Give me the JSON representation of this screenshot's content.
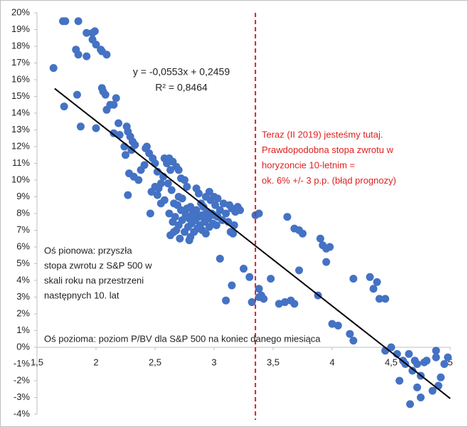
{
  "chart_data": {
    "type": "scatter",
    "equation": [
      "y = -0,0553x + 0,2459",
      "R² = 0,8464"
    ],
    "annotation_right": [
      "Teraz (II 2019) jesteśmy tutaj.",
      "Prawdopodobna stopa zwrotu w",
      "horyzoncie 10-letnim =",
      "ok. 6% +/- 3 p.p. (błąd prognozy)"
    ],
    "annotation_left": [
      "Oś pionowa: przyszła",
      "stopa zwrotu z S&P 500 w",
      "skali roku na przestrzeni",
      "następnych 10. lat"
    ],
    "x_axis_note": "Oś pozioma: poziom P/BV dla S&P 500 na koniec danego miesiąca",
    "x": [
      1.64,
      1.72,
      1.74,
      1.85,
      1.92,
      1.83,
      1.85,
      1.92,
      1.97,
      1.99,
      1.97,
      2.0,
      2.04,
      2.05,
      2.09,
      1.73,
      1.84,
      1.87,
      2.0,
      2.05,
      2.06,
      2.08,
      2.09,
      2.12,
      2.15,
      2.17,
      2.15,
      2.19,
      2.26,
      2.27,
      2.29,
      2.31,
      2.33,
      2.25,
      2.3,
      2.24,
      2.28,
      2.27,
      2.32,
      2.36,
      2.38,
      2.41,
      2.42,
      2.43,
      2.45,
      2.48,
      2.5,
      2.52,
      2.47,
      2.5,
      2.52,
      2.55,
      2.57,
      2.58,
      2.6,
      2.62,
      2.63,
      2.65,
      2.68,
      2.7,
      2.72,
      2.61,
      2.64,
      2.66,
      2.7,
      2.75,
      2.58,
      2.55,
      2.53,
      2.46,
      2.2,
      2.62,
      2.65,
      2.67,
      2.68,
      2.7,
      2.72,
      2.73,
      2.75,
      2.76,
      2.77,
      2.78,
      2.79,
      2.8,
      2.8,
      2.81,
      2.82,
      2.83,
      2.84,
      2.85,
      2.86,
      2.87,
      2.88,
      2.89,
      2.9,
      2.9,
      2.91,
      2.92,
      2.93,
      2.94,
      2.95,
      2.96,
      2.97,
      2.98,
      2.99,
      3.0,
      3.01,
      3.02,
      3.03,
      3.05,
      3.07,
      3.1,
      3.12,
      3.15,
      3.18,
      3.2,
      2.63,
      2.66,
      2.71,
      2.79,
      2.87,
      2.93,
      2.96,
      3.0,
      3.03,
      3.08,
      3.13,
      3.17,
      3.14,
      2.85,
      2.77,
      2.73,
      2.69,
      3.22,
      3.16,
      3.05,
      3.1,
      3.15,
      3.25,
      3.3,
      3.32,
      3.35,
      3.38,
      3.38,
      3.4,
      3.42,
      3.38,
      3.48,
      3.55,
      3.6,
      3.65,
      3.68,
      3.62,
      3.68,
      3.72,
      3.75,
      3.72,
      3.9,
      3.92,
      3.95,
      3.98,
      3.95,
      3.88,
      4.0,
      4.05,
      4.15,
      4.18,
      4.18,
      4.32,
      4.38,
      4.35,
      4.4,
      4.45,
      4.45,
      4.5,
      4.55,
      4.6,
      4.62,
      4.65,
      4.68,
      4.7,
      4.72,
      4.75,
      4.78,
      4.8,
      4.85,
      4.88,
      4.88,
      4.9,
      4.92,
      4.95,
      4.98,
      4.72,
      4.75,
      4.66,
      4.57
    ],
    "series": [
      {
        "color": "#4472c4",
        "values": [
          16.7,
          19.5,
          19.5,
          19.5,
          18.8,
          17.8,
          17.5,
          17.4,
          18.8,
          18.9,
          18.4,
          18.1,
          17.8,
          17.7,
          17.5,
          14.4,
          15.1,
          13.2,
          13.1,
          15.5,
          15.3,
          15.1,
          14.2,
          14.5,
          14.5,
          14.9,
          12.8,
          13.4,
          13.2,
          12.9,
          12.6,
          12.3,
          12.1,
          11.5,
          11.8,
          12.0,
          10.4,
          9.1,
          10.2,
          10.0,
          10.6,
          10.9,
          11.9,
          12.0,
          11.6,
          11.3,
          11.0,
          10.5,
          9.3,
          9.6,
          9.1,
          9.8,
          10.2,
          11.3,
          11.0,
          11.3,
          10.6,
          11.1,
          10.8,
          10.6,
          10.1,
          9.8,
          9.4,
          8.6,
          9.0,
          10.0,
          8.8,
          8.6,
          9.5,
          8.0,
          12.7,
          8.0,
          7.5,
          7.8,
          7.0,
          7.3,
          8.2,
          7.6,
          6.9,
          7.9,
          8.3,
          7.2,
          7.7,
          6.6,
          8.4,
          7.4,
          8.0,
          6.9,
          7.6,
          8.2,
          7.1,
          7.8,
          7.3,
          8.6,
          7.0,
          7.9,
          8.4,
          7.5,
          6.8,
          8.1,
          7.7,
          7.2,
          8.8,
          8.0,
          7.4,
          7.9,
          8.5,
          7.3,
          7.8,
          8.2,
          7.6,
          8.0,
          7.5,
          8.3,
          8.1,
          8.4,
          6.7,
          6.9,
          6.5,
          6.4,
          9.2,
          9.0,
          9.3,
          9.0,
          8.9,
          8.6,
          8.5,
          7.3,
          6.9,
          9.5,
          9.6,
          8.9,
          8.5,
          8.2,
          6.8,
          5.3,
          2.8,
          3.7,
          4.7,
          4.2,
          2.7,
          7.9,
          8.0,
          3.5,
          3.1,
          2.9,
          3.0,
          4.1,
          2.6,
          2.7,
          2.8,
          2.6,
          7.8,
          7.1,
          7.0,
          6.8,
          4.6,
          6.5,
          6.1,
          5.9,
          6.0,
          5.1,
          3.1,
          1.4,
          1.3,
          0.8,
          0.4,
          4.1,
          4.2,
          3.9,
          3.5,
          2.9,
          2.9,
          -0.2,
          0.0,
          -0.4,
          -0.8,
          -1.0,
          -0.4,
          -1.4,
          -0.8,
          -1.0,
          -1.7,
          -0.9,
          -0.8,
          -2.6,
          -0.6,
          -0.2,
          -2.3,
          -1.8,
          -1.0,
          -0.6,
          -2.4,
          -3.0,
          -3.4,
          -2.0
        ]
      }
    ],
    "trendline": {
      "color": "#000000",
      "x": [
        1.65,
        5
      ],
      "values": [
        15.47,
        -3.06
      ]
    },
    "reference_line": {
      "color": "#e02020",
      "x": 3.35
    },
    "xlim": [
      1.5,
      5
    ],
    "ylim": [
      -4,
      20
    ],
    "xticks": [
      {
        "value": 1.5,
        "label": "1,5"
      },
      2,
      {
        "value": 2.5,
        "label": "2,5"
      },
      3,
      {
        "value": 3.5,
        "label": "3,5"
      },
      4,
      {
        "value": 4.5,
        "label": "4,5"
      },
      5
    ],
    "yticks": [
      {
        "value": -4,
        "label": "-4%"
      },
      {
        "value": -3,
        "label": "-3%"
      },
      {
        "value": -2,
        "label": "-2%"
      },
      {
        "value": -1,
        "label": "-1%"
      },
      {
        "value": 0,
        "label": "0%"
      },
      {
        "value": 1,
        "label": "1%"
      },
      {
        "value": 2,
        "label": "2%"
      },
      {
        "value": 3,
        "label": "3%"
      },
      {
        "value": 4,
        "label": "4%"
      },
      {
        "value": 5,
        "label": "5%"
      },
      {
        "value": 6,
        "label": "6%"
      },
      {
        "value": 7,
        "label": "7%"
      },
      {
        "value": 8,
        "label": "8%"
      },
      {
        "value": 9,
        "label": "9%"
      },
      {
        "value": 10,
        "label": "10%"
      },
      {
        "value": 11,
        "label": "11%"
      },
      {
        "value": 12,
        "label": "12%"
      },
      {
        "value": 13,
        "label": "13%"
      },
      {
        "value": 14,
        "label": "14%"
      },
      {
        "value": 15,
        "label": "15%"
      },
      {
        "value": 16,
        "label": "16%"
      },
      {
        "value": 17,
        "label": "17%"
      },
      {
        "value": 18,
        "label": "18%"
      },
      {
        "value": 19,
        "label": "19%"
      },
      {
        "value": 20,
        "label": "20%"
      }
    ],
    "grid": false
  }
}
